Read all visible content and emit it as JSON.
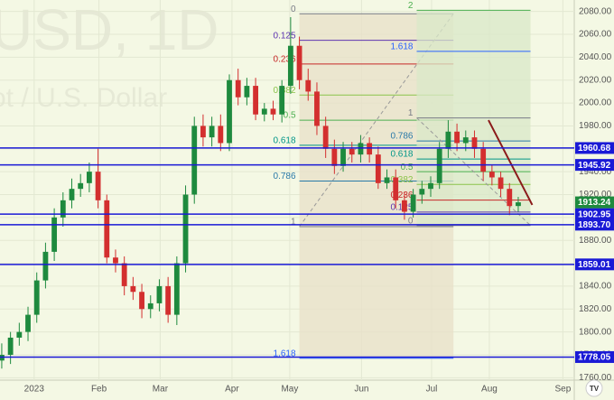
{
  "chart_data": {
    "type": "candlestick",
    "watermark": {
      "title": "USD, 1D",
      "subtitle": "ot / U.S. Dollar"
    },
    "candles": {
      "open": [
        1775,
        1780,
        1795,
        1800,
        1815,
        1845,
        1870,
        1900,
        1915,
        1925,
        1930,
        1940,
        1915,
        1865,
        1860,
        1840,
        1835,
        1820,
        1825,
        1840,
        1815,
        1860,
        1920,
        1980,
        1970,
        1980,
        1965,
        2020,
        2005,
        2015,
        1990,
        1995,
        1990,
        2015,
        2050,
        2020,
        2010,
        1980,
        1960,
        1945,
        1960,
        1955,
        1965,
        1955,
        1930,
        1935,
        1915,
        1905,
        1920,
        1925,
        1930,
        1960,
        1975,
        1965,
        1970,
        1960,
        1940,
        1935,
        1925,
        1910
      ],
      "high": [
        1790,
        1800,
        1808,
        1822,
        1852,
        1878,
        1908,
        1922,
        1934,
        1938,
        1948,
        1960,
        1920,
        1872,
        1866,
        1848,
        1842,
        1832,
        1846,
        1848,
        1866,
        1928,
        1988,
        1990,
        1988,
        1990,
        2025,
        2030,
        2022,
        2022,
        2000,
        2002,
        2020,
        2075,
        2058,
        2030,
        2018,
        1988,
        1968,
        1966,
        1966,
        1972,
        1970,
        1962,
        1942,
        1942,
        1922,
        1925,
        1932,
        1936,
        1966,
        1985,
        1982,
        1976,
        1976,
        1966,
        1946,
        1940,
        1930,
        1918
      ],
      "low": [
        1768,
        1772,
        1788,
        1792,
        1808,
        1838,
        1862,
        1892,
        1908,
        1918,
        1922,
        1908,
        1860,
        1852,
        1832,
        1828,
        1812,
        1812,
        1818,
        1808,
        1806,
        1852,
        1912,
        1962,
        1962,
        1958,
        1958,
        1998,
        1998,
        1985,
        1984,
        1985,
        1983,
        2008,
        2012,
        2002,
        1972,
        1952,
        1938,
        1940,
        1948,
        1948,
        1948,
        1925,
        1925,
        1908,
        1898,
        1900,
        1912,
        1918,
        1925,
        1952,
        1958,
        1958,
        1952,
        1932,
        1928,
        1918,
        1902,
        1905
      ],
      "close": [
        1780,
        1795,
        1800,
        1815,
        1845,
        1870,
        1900,
        1915,
        1925,
        1930,
        1940,
        1915,
        1865,
        1860,
        1840,
        1835,
        1820,
        1825,
        1840,
        1815,
        1860,
        1920,
        1980,
        1970,
        1980,
        1965,
        2020,
        2005,
        2015,
        1990,
        1995,
        1990,
        2015,
        2050,
        2020,
        2010,
        1980,
        1960,
        1945,
        1960,
        1955,
        1965,
        1955,
        1930,
        1935,
        1915,
        1905,
        1920,
        1925,
        1930,
        1960,
        1975,
        1965,
        1970,
        1960,
        1940,
        1935,
        1925,
        1910,
        1913.24
      ]
    },
    "up_color": "#1e8a3e",
    "down_color": "#d32f2f",
    "xlim": [
      -0.2,
      65.4
    ],
    "xticks": [
      {
        "value": 3.7,
        "label": "2023"
      },
      {
        "value": 11.1,
        "label": "Feb"
      },
      {
        "value": 18.1,
        "label": "Mar"
      },
      {
        "value": 26.3,
        "label": "Apr"
      },
      {
        "value": 32.9,
        "label": "May"
      },
      {
        "value": 41.1,
        "label": "Jun"
      },
      {
        "value": 49.1,
        "label": "Jul"
      },
      {
        "value": 55.7,
        "label": "Aug"
      },
      {
        "value": 64.1,
        "label": "Sep"
      }
    ],
    "ylim": [
      1750,
      2090
    ],
    "yticks": [
      {
        "value": 1760,
        "label": "1760.00"
      },
      {
        "value": 1780,
        "label": "1780.00"
      },
      {
        "value": 1800,
        "label": "1800.00"
      },
      {
        "value": 1820,
        "label": "1820.00"
      },
      {
        "value": 1840,
        "label": "1840.00"
      },
      {
        "value": 1860,
        "label": "1860.00"
      },
      {
        "value": 1880,
        "label": "1880.00"
      },
      {
        "value": 1900,
        "label": "1900.00"
      },
      {
        "value": 1920,
        "label": "1920.00"
      },
      {
        "value": 1940,
        "label": "1940.00"
      },
      {
        "value": 1960,
        "label": "1960.00"
      },
      {
        "value": 1980,
        "label": "1980.00"
      },
      {
        "value": 2000,
        "label": "2000.00"
      },
      {
        "value": 2020,
        "label": "2020.00"
      },
      {
        "value": 2040,
        "label": "2040.00"
      },
      {
        "value": 2060,
        "label": "2060.00"
      },
      {
        "value": 2080,
        "label": "2080.00"
      }
    ],
    "grid": true,
    "levels": [
      1960.68,
      1945.92,
      1902.95,
      {
        "value": 1893.7,
        "label": "1893.70"
      },
      1859.01,
      1778.05
    ],
    "level_color": "#1a1ad6",
    "fibs": [
      {
        "start": 34,
        "end": 51.6,
        "p0": 2078,
        "p1": 1892,
        "shade": "#e8e0c8",
        "levels": [
          0,
          0.125,
          0.236,
          0.382,
          0.5,
          0.618,
          0.786,
          1,
          1.618
        ],
        "colors": [
          "#787b86",
          "#5e35b1",
          "#c62828",
          "#8bc34a",
          "#4caf50",
          "#009688",
          "#2979a8",
          "#787b86",
          "#2962ff"
        ]
      },
      {
        "start": 47.4,
        "end": 60.4,
        "p0": 1893,
        "p1": 1987,
        "shade": "#d9e8c8",
        "levels": [
          0,
          0.125,
          0.236,
          0.382,
          0.5,
          0.618,
          0.786,
          1,
          1.618,
          2
        ],
        "colors": [
          "#787b86",
          "#5e35b1",
          "#c62828",
          "#8bc34a",
          "#4caf50",
          "#009688",
          "#2979a8",
          "#787b86",
          "#2962ff",
          "#4caf50"
        ]
      }
    ],
    "trendline": {
      "from": [
        55.6,
        1985
      ],
      "to": [
        60.6,
        1911
      ],
      "color": "#8b1a1a"
    }
  }
}
